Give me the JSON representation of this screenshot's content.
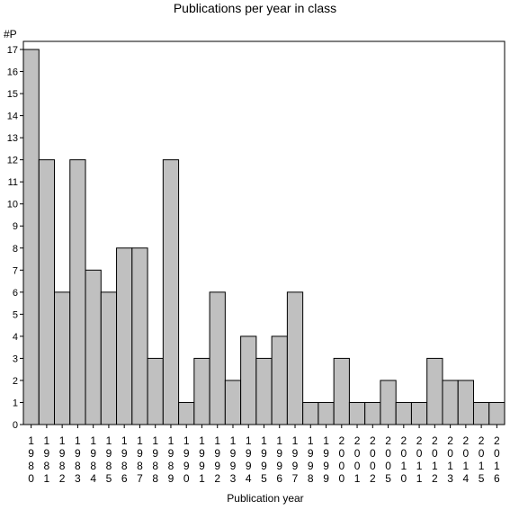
{
  "chart_data": {
    "type": "bar",
    "title": "Publications per year in class",
    "ylabel": "#P",
    "xlabel": "Publication year",
    "categories": [
      "1980",
      "1981",
      "1982",
      "1983",
      "1984",
      "1985",
      "1986",
      "1987",
      "1988",
      "1989",
      "1990",
      "1991",
      "1992",
      "1993",
      "1994",
      "1995",
      "1996",
      "1997",
      "1998",
      "1999",
      "2000",
      "2001",
      "2002",
      "2005",
      "2010",
      "2011",
      "2012",
      "2013",
      "2014",
      "2015",
      "2016"
    ],
    "values": [
      17,
      12,
      6,
      12,
      7,
      6,
      8,
      8,
      3,
      12,
      1,
      3,
      6,
      2,
      4,
      3,
      4,
      6,
      1,
      1,
      3,
      1,
      1,
      2,
      1,
      1,
      3,
      2,
      2,
      1,
      1
    ],
    "ylim": [
      0,
      17
    ],
    "yticks": [
      0,
      1,
      2,
      3,
      4,
      5,
      6,
      7,
      8,
      9,
      10,
      11,
      12,
      13,
      14,
      15,
      16,
      17
    ],
    "grid": false,
    "bar_color": "#c0c0c0",
    "bar_edge_color": "#000000"
  }
}
